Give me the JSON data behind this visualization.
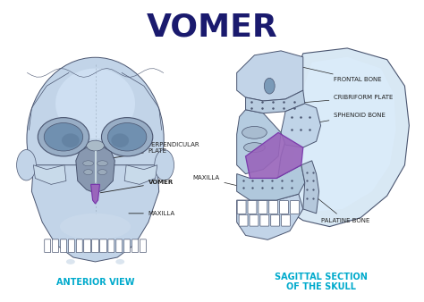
{
  "title": "VOMER",
  "title_color": "#1a1a6e",
  "title_fontsize": 26,
  "title_fontweight": "bold",
  "bg_color": "#ffffff",
  "label_color": "#222222",
  "label_fontsize": 5.0,
  "subheading_color": "#00aacc",
  "subheading_fontsize": 7.0,
  "subheading_fontweight": "bold",
  "skull_fill": "#c2d4e8",
  "skull_fill2": "#d8e8f4",
  "skull_edge": "#4a5570",
  "vomer_fill": "#9966bb",
  "left_panel_label": "ANTERIOR VIEW",
  "right_panel_label": "SAGITTAL SECTION\nOF THE SKULL"
}
